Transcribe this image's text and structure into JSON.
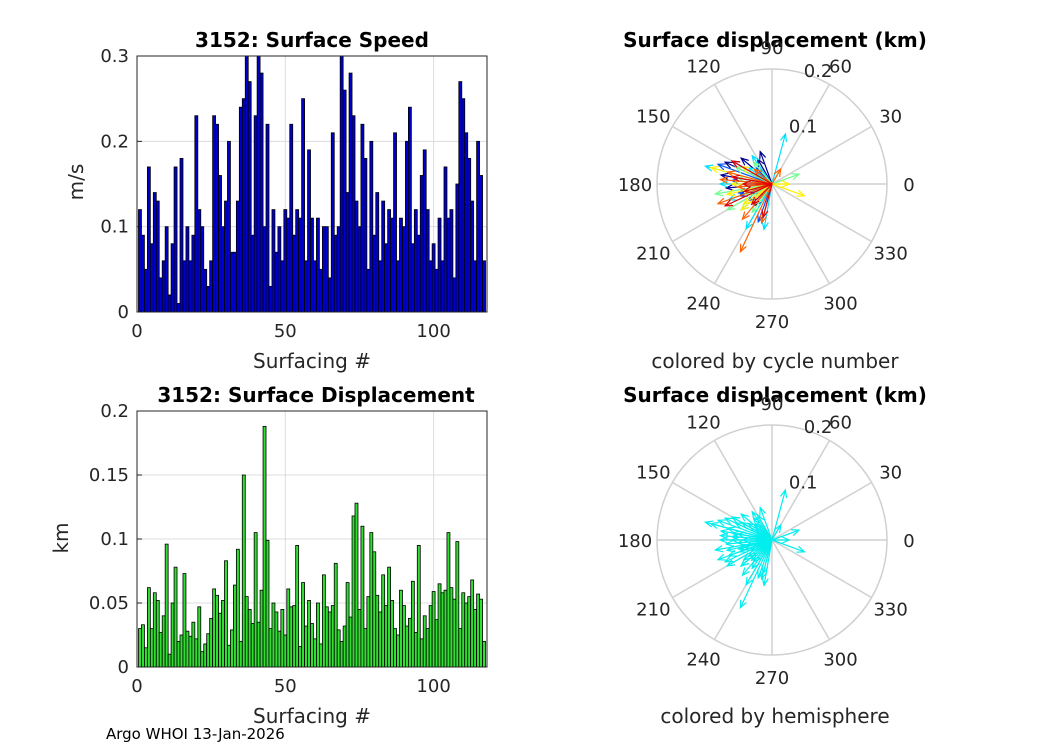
{
  "footer": "Argo WHOI 13-Jan-2026",
  "chart_data": [
    {
      "type": "bar",
      "title": "3152: Surface Speed",
      "xlabel": "Surfacing #",
      "ylabel": "m/s",
      "xlim": [
        0,
        118
      ],
      "ylim": [
        0,
        0.3
      ],
      "xticks": [
        "0",
        "50",
        "100"
      ],
      "yticks": [
        "0",
        "0.1",
        "0.2",
        "0.3"
      ],
      "grid": true,
      "bar_color": "#0000cd",
      "x": [
        1,
        2,
        3,
        4,
        5,
        6,
        7,
        8,
        9,
        10,
        11,
        12,
        13,
        14,
        15,
        16,
        17,
        18,
        19,
        20,
        21,
        22,
        23,
        24,
        25,
        26,
        27,
        28,
        29,
        30,
        31,
        32,
        33,
        34,
        35,
        36,
        37,
        38,
        39,
        40,
        41,
        42,
        43,
        44,
        45,
        46,
        47,
        48,
        49,
        50,
        51,
        52,
        53,
        54,
        55,
        56,
        57,
        58,
        59,
        60,
        61,
        62,
        63,
        64,
        65,
        66,
        67,
        68,
        69,
        70,
        71,
        72,
        73,
        74,
        75,
        76,
        77,
        78,
        79,
        80,
        81,
        82,
        83,
        84,
        85,
        86,
        87,
        88,
        89,
        90,
        91,
        92,
        93,
        94,
        95,
        96,
        97,
        98,
        99,
        100,
        101,
        102,
        103,
        104,
        105,
        106,
        107,
        108,
        109,
        110,
        111,
        112,
        113,
        114,
        115,
        116,
        117
      ],
      "values": [
        0.12,
        0.09,
        0.05,
        0.17,
        0.08,
        0.14,
        0.13,
        0.04,
        0.06,
        0.1,
        0.02,
        0.08,
        0.17,
        0.01,
        0.18,
        0.06,
        0.1,
        0.06,
        0.09,
        0.23,
        0.12,
        0.1,
        0.05,
        0.03,
        0.06,
        0.23,
        0.22,
        0.16,
        0.1,
        0.13,
        0.2,
        0.07,
        0.07,
        0.13,
        0.24,
        0.25,
        0.3,
        0.27,
        0.09,
        0.23,
        0.3,
        0.28,
        0.1,
        0.22,
        0.03,
        0.12,
        0.07,
        0.1,
        0.06,
        0.12,
        0.11,
        0.22,
        0.09,
        0.12,
        0.11,
        0.25,
        0.06,
        0.19,
        0.11,
        0.06,
        0.11,
        0.05,
        0.1,
        0.1,
        0.04,
        0.21,
        0.09,
        0.1,
        0.3,
        0.26,
        0.14,
        0.28,
        0.23,
        0.13,
        0.1,
        0.22,
        0.18,
        0.05,
        0.2,
        0.09,
        0.14,
        0.06,
        0.13,
        0.08,
        0.12,
        0.11,
        0.21,
        0.06,
        0.11,
        0.1,
        0.2,
        0.24,
        0.08,
        0.12,
        0.09,
        0.16,
        0.19,
        0.12,
        0.06,
        0.08,
        0.05,
        0.11,
        0.06,
        0.17,
        0.11,
        0.12,
        0.04,
        0.15,
        0.27,
        0.25,
        0.21,
        0.18,
        0.13,
        0.06,
        0.2,
        0.16,
        0.06
      ]
    },
    {
      "type": "bar",
      "title": "3152: Surface Displacement",
      "xlabel": "Surfacing #",
      "ylabel": "km",
      "xlim": [
        0,
        118
      ],
      "ylim": [
        0,
        0.2
      ],
      "xticks": [
        "0",
        "50",
        "100"
      ],
      "yticks": [
        "0",
        "0.05",
        "0.1",
        "0.15",
        "0.2"
      ],
      "grid": true,
      "bar_color": "#33dd33",
      "x": [
        1,
        2,
        3,
        4,
        5,
        6,
        7,
        8,
        9,
        10,
        11,
        12,
        13,
        14,
        15,
        16,
        17,
        18,
        19,
        20,
        21,
        22,
        23,
        24,
        25,
        26,
        27,
        28,
        29,
        30,
        31,
        32,
        33,
        34,
        35,
        36,
        37,
        38,
        39,
        40,
        41,
        42,
        43,
        44,
        45,
        46,
        47,
        48,
        49,
        50,
        51,
        52,
        53,
        54,
        55,
        56,
        57,
        58,
        59,
        60,
        61,
        62,
        63,
        64,
        65,
        66,
        67,
        68,
        69,
        70,
        71,
        72,
        73,
        74,
        75,
        76,
        77,
        78,
        79,
        80,
        81,
        82,
        83,
        84,
        85,
        86,
        87,
        88,
        89,
        90,
        91,
        92,
        93,
        94,
        95,
        96,
        97,
        98,
        99,
        100,
        101,
        102,
        103,
        104,
        105,
        106,
        107,
        108,
        109,
        110,
        111,
        112,
        113,
        114,
        115,
        116,
        117
      ],
      "values": [
        0.03,
        0.033,
        0.015,
        0.062,
        0.03,
        0.058,
        0.052,
        0.027,
        0.04,
        0.096,
        0.01,
        0.05,
        0.078,
        0.02,
        0.025,
        0.073,
        0.028,
        0.024,
        0.035,
        0.022,
        0.047,
        0.012,
        0.018,
        0.026,
        0.038,
        0.061,
        0.056,
        0.042,
        0.052,
        0.083,
        0.017,
        0.029,
        0.064,
        0.092,
        0.02,
        0.15,
        0.055,
        0.045,
        0.034,
        0.105,
        0.035,
        0.06,
        0.188,
        0.099,
        0.03,
        0.05,
        0.043,
        0.028,
        0.045,
        0.025,
        0.061,
        0.047,
        0.048,
        0.095,
        0.016,
        0.066,
        0.032,
        0.052,
        0.034,
        0.022,
        0.05,
        0.018,
        0.072,
        0.047,
        0.043,
        0.048,
        0.081,
        0.029,
        0.02,
        0.032,
        0.066,
        0.039,
        0.118,
        0.128,
        0.045,
        0.11,
        0.03,
        0.055,
        0.105,
        0.09,
        0.056,
        0.043,
        0.072,
        0.048,
        0.078,
        0.052,
        0.03,
        0.025,
        0.06,
        0.048,
        0.032,
        0.038,
        0.067,
        0.027,
        0.095,
        0.022,
        0.04,
        0.03,
        0.048,
        0.059,
        0.037,
        0.065,
        0.058,
        0.06,
        0.105,
        0.062,
        0.053,
        0.098,
        0.03,
        0.058,
        0.05,
        0.055,
        0.068,
        0.045,
        0.057,
        0.053,
        0.02
      ]
    },
    {
      "type": "polar",
      "title": "Surface displacement (km)",
      "caption": "colored by cycle number",
      "rlim": [
        0,
        0.2
      ],
      "rticks": [
        "0.1",
        "0.2"
      ],
      "theta_labels": [
        "0",
        "30",
        "60",
        "90",
        "120",
        "150",
        "180",
        "210",
        "240",
        "270",
        "300",
        "330"
      ],
      "colormap": [
        "#00008f",
        "#0050ff",
        "#00dfff",
        "#70ff8f",
        "#ffef00",
        "#ff6000",
        "#df0000"
      ],
      "vectors": [
        {
          "angle": 155,
          "r": 0.09,
          "cycle": 1
        },
        {
          "angle": 120,
          "r": 0.05,
          "cycle": 3
        },
        {
          "angle": 200,
          "r": 0.06,
          "cycle": 5
        },
        {
          "angle": 140,
          "r": 0.07,
          "cycle": 7
        },
        {
          "angle": 170,
          "r": 0.09,
          "cycle": 10
        },
        {
          "angle": 230,
          "r": 0.05,
          "cycle": 12
        },
        {
          "angle": 185,
          "r": 0.08,
          "cycle": 14
        },
        {
          "angle": 110,
          "r": 0.06,
          "cycle": 16
        },
        {
          "angle": 250,
          "r": 0.07,
          "cycle": 18
        },
        {
          "angle": 160,
          "r": 0.1,
          "cycle": 20
        },
        {
          "angle": 135,
          "r": 0.04,
          "cycle": 22
        },
        {
          "angle": 215,
          "r": 0.05,
          "cycle": 24
        },
        {
          "angle": 195,
          "r": 0.06,
          "cycle": 26
        },
        {
          "angle": 150,
          "r": 0.08,
          "cycle": 28
        },
        {
          "angle": 175,
          "r": 0.07,
          "cycle": 30
        },
        {
          "angle": 205,
          "r": 0.04,
          "cycle": 32
        },
        {
          "angle": 125,
          "r": 0.06,
          "cycle": 34
        },
        {
          "angle": 240,
          "r": 0.09,
          "cycle": 36
        },
        {
          "angle": 165,
          "r": 0.12,
          "cycle": 38
        },
        {
          "angle": 200,
          "r": 0.08,
          "cycle": 40
        },
        {
          "angle": 145,
          "r": 0.05,
          "cycle": 42
        },
        {
          "angle": 260,
          "r": 0.08,
          "cycle": 44
        },
        {
          "angle": 180,
          "r": 0.09,
          "cycle": 46
        },
        {
          "angle": 75,
          "r": 0.09,
          "cycle": 48
        },
        {
          "angle": 220,
          "r": 0.07,
          "cycle": 50
        },
        {
          "angle": 190,
          "r": 0.1,
          "cycle": 52
        },
        {
          "angle": 130,
          "r": 0.05,
          "cycle": 54
        },
        {
          "angle": 210,
          "r": 0.09,
          "cycle": 56
        },
        {
          "angle": 170,
          "r": 0.06,
          "cycle": 58
        },
        {
          "angle": 235,
          "r": 0.06,
          "cycle": 60
        },
        {
          "angle": 20,
          "r": 0.05,
          "cycle": 62
        },
        {
          "angle": 155,
          "r": 0.07,
          "cycle": 64
        },
        {
          "angle": 200,
          "r": 0.05,
          "cycle": 66
        },
        {
          "angle": 340,
          "r": 0.06,
          "cycle": 68
        },
        {
          "angle": 180,
          "r": 0.07,
          "cycle": 70
        },
        {
          "angle": 215,
          "r": 0.06,
          "cycle": 72
        },
        {
          "angle": 150,
          "r": 0.06,
          "cycle": 74
        },
        {
          "angle": 0,
          "r": 0.03,
          "cycle": 76
        },
        {
          "angle": 193,
          "r": 0.08,
          "cycle": 78
        },
        {
          "angle": 220,
          "r": 0.07,
          "cycle": 80
        },
        {
          "angle": 165,
          "r": 0.11,
          "cycle": 82
        },
        {
          "angle": 245,
          "r": 0.13,
          "cycle": 84
        },
        {
          "angle": 175,
          "r": 0.09,
          "cycle": 86
        },
        {
          "angle": 200,
          "r": 0.1,
          "cycle": 88
        },
        {
          "angle": 60,
          "r": 0.03,
          "cycle": 90
        },
        {
          "angle": 255,
          "r": 0.07,
          "cycle": 92
        },
        {
          "angle": 185,
          "r": 0.06,
          "cycle": 94
        },
        {
          "angle": 165,
          "r": 0.08,
          "cycle": 96
        },
        {
          "angle": 230,
          "r": 0.08,
          "cycle": 98
        },
        {
          "angle": 140,
          "r": 0.04,
          "cycle": 100
        },
        {
          "angle": 205,
          "r": 0.09,
          "cycle": 102
        },
        {
          "angle": 180,
          "r": 0.05,
          "cycle": 104
        },
        {
          "angle": 255,
          "r": 0.06,
          "cycle": 106
        },
        {
          "angle": 150,
          "r": 0.08,
          "cycle": 108
        },
        {
          "angle": 195,
          "r": 0.05,
          "cycle": 110
        },
        {
          "angle": 170,
          "r": 0.07,
          "cycle": 112
        },
        {
          "angle": 225,
          "r": 0.05,
          "cycle": 114
        }
      ]
    },
    {
      "type": "polar",
      "title": "Surface displacement (km)",
      "caption": "colored by hemisphere",
      "rlim": [
        0,
        0.2
      ],
      "rticks": [
        "0.1",
        "0.2"
      ],
      "theta_labels": [
        "0",
        "30",
        "60",
        "90",
        "120",
        "150",
        "180",
        "210",
        "240",
        "270",
        "300",
        "330"
      ],
      "vector_color": "#00eeee",
      "vectors": [
        {
          "angle": 155,
          "r": 0.09
        },
        {
          "angle": 120,
          "r": 0.05
        },
        {
          "angle": 200,
          "r": 0.06
        },
        {
          "angle": 140,
          "r": 0.07
        },
        {
          "angle": 170,
          "r": 0.09
        },
        {
          "angle": 230,
          "r": 0.05
        },
        {
          "angle": 185,
          "r": 0.08
        },
        {
          "angle": 110,
          "r": 0.06
        },
        {
          "angle": 250,
          "r": 0.07
        },
        {
          "angle": 160,
          "r": 0.1
        },
        {
          "angle": 135,
          "r": 0.04
        },
        {
          "angle": 215,
          "r": 0.05
        },
        {
          "angle": 195,
          "r": 0.06
        },
        {
          "angle": 150,
          "r": 0.08
        },
        {
          "angle": 175,
          "r": 0.07
        },
        {
          "angle": 205,
          "r": 0.04
        },
        {
          "angle": 125,
          "r": 0.06
        },
        {
          "angle": 240,
          "r": 0.09
        },
        {
          "angle": 165,
          "r": 0.12
        },
        {
          "angle": 200,
          "r": 0.08
        },
        {
          "angle": 145,
          "r": 0.05
        },
        {
          "angle": 260,
          "r": 0.08
        },
        {
          "angle": 180,
          "r": 0.09
        },
        {
          "angle": 75,
          "r": 0.09
        },
        {
          "angle": 220,
          "r": 0.07
        },
        {
          "angle": 190,
          "r": 0.1
        },
        {
          "angle": 130,
          "r": 0.05
        },
        {
          "angle": 210,
          "r": 0.09
        },
        {
          "angle": 170,
          "r": 0.06
        },
        {
          "angle": 235,
          "r": 0.06
        },
        {
          "angle": 20,
          "r": 0.05
        },
        {
          "angle": 155,
          "r": 0.07
        },
        {
          "angle": 200,
          "r": 0.05
        },
        {
          "angle": 340,
          "r": 0.06
        },
        {
          "angle": 180,
          "r": 0.07
        },
        {
          "angle": 215,
          "r": 0.06
        },
        {
          "angle": 150,
          "r": 0.06
        },
        {
          "angle": 0,
          "r": 0.03
        },
        {
          "angle": 193,
          "r": 0.08
        },
        {
          "angle": 220,
          "r": 0.07
        },
        {
          "angle": 165,
          "r": 0.11
        },
        {
          "angle": 245,
          "r": 0.13
        },
        {
          "angle": 175,
          "r": 0.09
        },
        {
          "angle": 200,
          "r": 0.1
        },
        {
          "angle": 60,
          "r": 0.03
        },
        {
          "angle": 255,
          "r": 0.07
        },
        {
          "angle": 185,
          "r": 0.06
        },
        {
          "angle": 165,
          "r": 0.08
        },
        {
          "angle": 230,
          "r": 0.08
        },
        {
          "angle": 140,
          "r": 0.04
        },
        {
          "angle": 205,
          "r": 0.09
        },
        {
          "angle": 180,
          "r": 0.05
        },
        {
          "angle": 255,
          "r": 0.06
        },
        {
          "angle": 150,
          "r": 0.08
        },
        {
          "angle": 195,
          "r": 0.05
        },
        {
          "angle": 170,
          "r": 0.07
        },
        {
          "angle": 225,
          "r": 0.05
        }
      ]
    }
  ]
}
